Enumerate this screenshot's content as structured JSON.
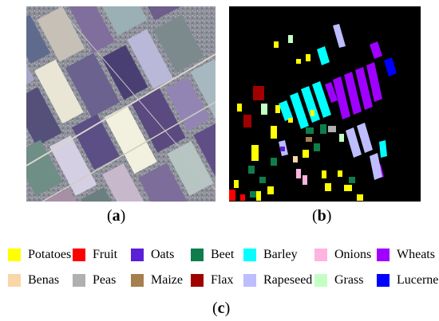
{
  "panels": {
    "a": {
      "open": "(",
      "letter": "a",
      "close": ")"
    },
    "b": {
      "open": "(",
      "letter": "b",
      "close": ")"
    },
    "c": {
      "open": "(",
      "letter": "c",
      "close": ")"
    }
  },
  "legend": {
    "items": [
      {
        "label": "Potatoes",
        "color": "#ffff00"
      },
      {
        "label": "Fruit",
        "color": "#ff0000"
      },
      {
        "label": "Oats",
        "color": "#5a1fd6"
      },
      {
        "label": "Beet",
        "color": "#0f7d4b"
      },
      {
        "label": "Barley",
        "color": "#00ffff"
      },
      {
        "label": "Onions",
        "color": "#ffb3df"
      },
      {
        "label": "Wheats",
        "color": "#a000ff"
      },
      {
        "label": "Benas",
        "color": "#f9d6a8"
      },
      {
        "label": "Peas",
        "color": "#b0b0b0"
      },
      {
        "label": "Maize",
        "color": "#a57f4e"
      },
      {
        "label": "Flax",
        "color": "#a00000"
      },
      {
        "label": "Rapeseed",
        "color": "#bdbdff"
      },
      {
        "label": "Grass",
        "color": "#c3ffc3"
      },
      {
        "label": "Lucerne",
        "color": "#0000ff"
      }
    ]
  },
  "map_background": "#000000"
}
